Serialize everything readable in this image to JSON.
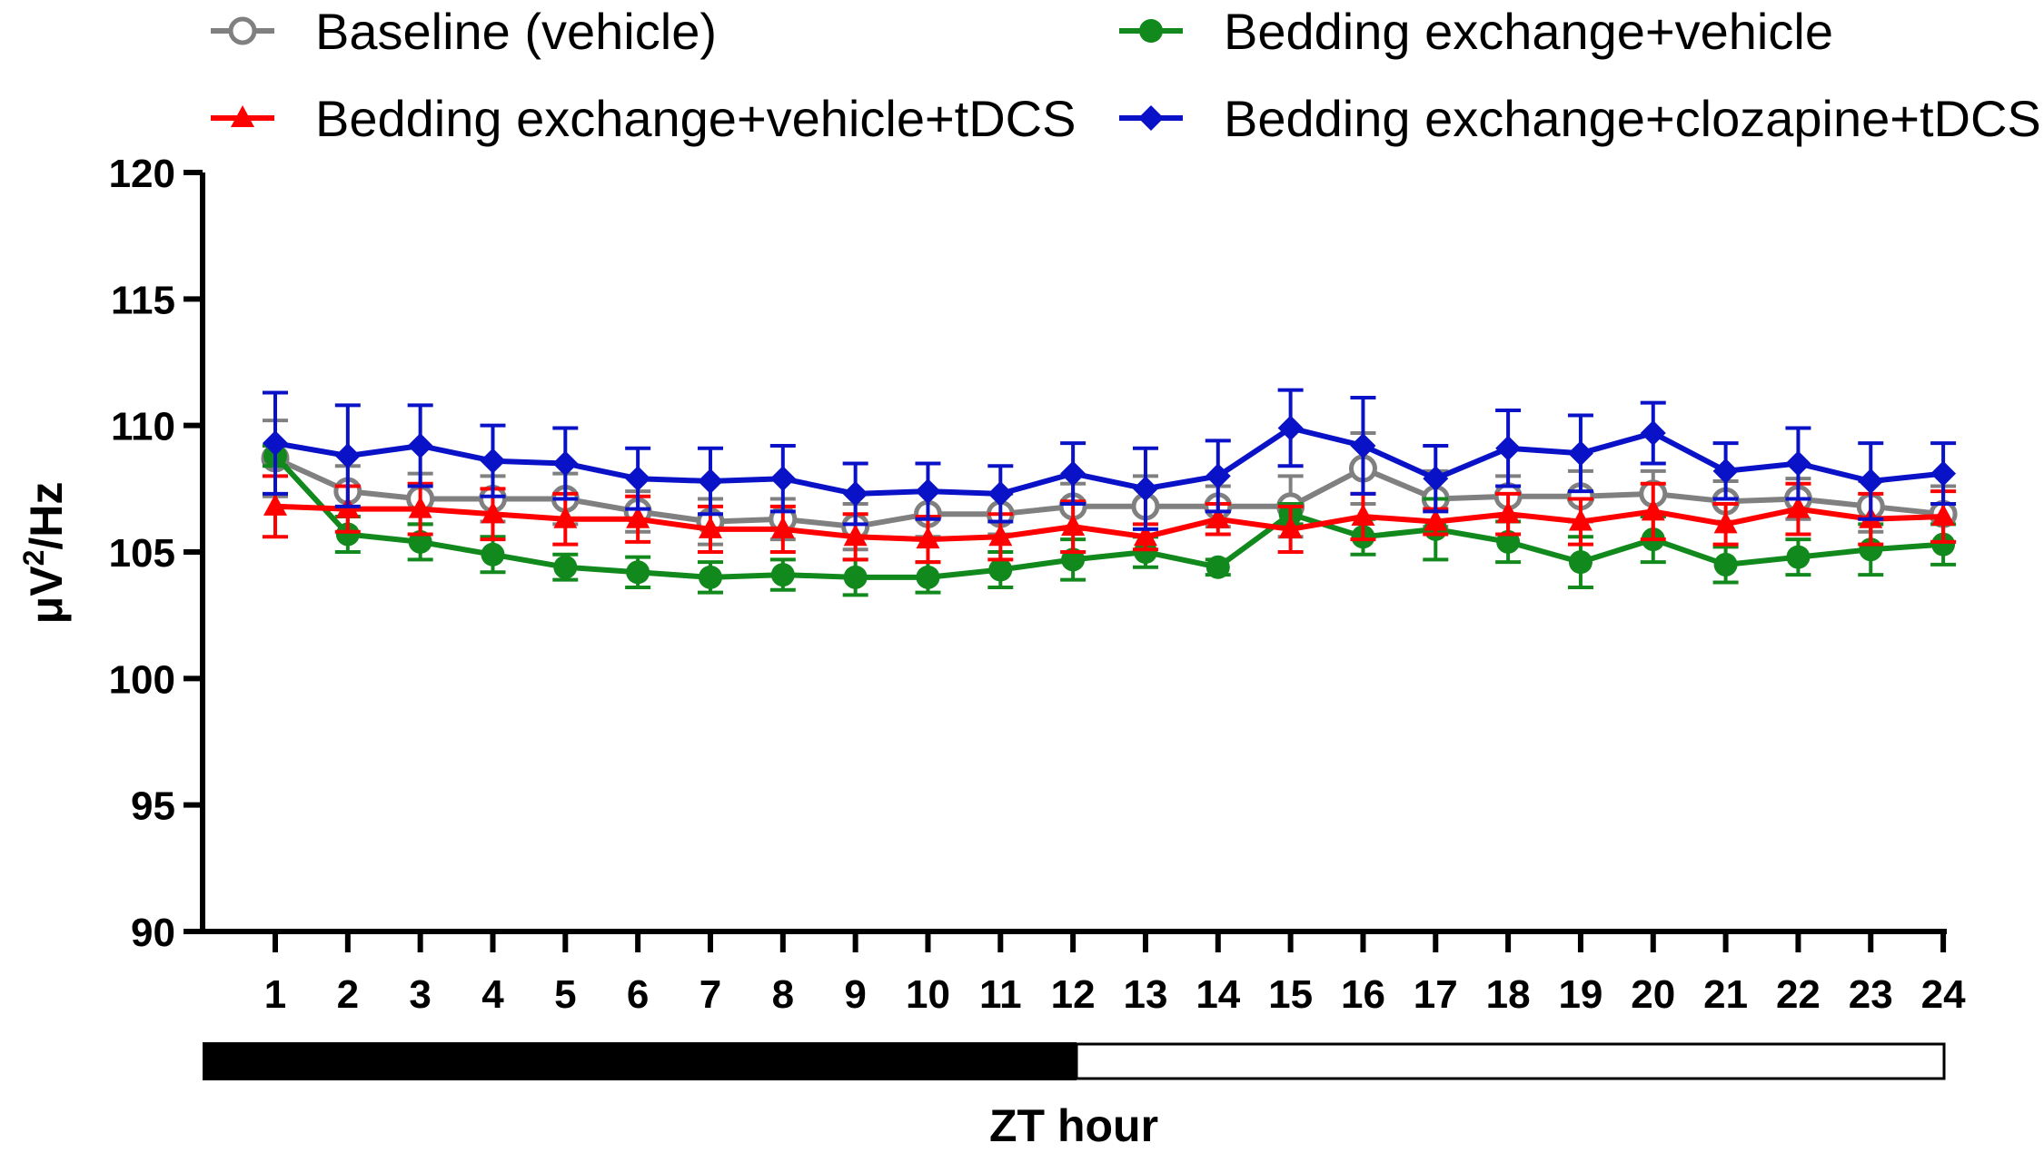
{
  "chart_data": {
    "type": "line",
    "title": "",
    "xlabel": "ZT hour",
    "ylabel_main": "μV",
    "ylabel_sup": "2",
    "ylabel_tail": "/Hz",
    "ylim": [
      90,
      120
    ],
    "yticks": [
      90,
      95,
      100,
      105,
      110,
      115,
      120
    ],
    "ytick_labels": [
      "90",
      "95",
      "100",
      "105",
      "110",
      "115",
      "120"
    ],
    "x": [
      1,
      2,
      3,
      4,
      5,
      6,
      7,
      8,
      9,
      10,
      11,
      12,
      13,
      14,
      15,
      16,
      17,
      18,
      19,
      20,
      21,
      22,
      23,
      24
    ],
    "x_labels": [
      "1",
      "2",
      "3",
      "4",
      "5",
      "6",
      "7",
      "8",
      "9",
      "10",
      "11",
      "12",
      "13",
      "14",
      "15",
      "16",
      "17",
      "18",
      "19",
      "20",
      "21",
      "22",
      "23",
      "24"
    ],
    "light_dark_bar": {
      "dark_hours": [
        1,
        12
      ],
      "light_hours": [
        13,
        24
      ]
    },
    "series": [
      {
        "name": "Baseline (vehicle)",
        "color": "#808080",
        "marker": "open-circle",
        "values": [
          108.7,
          107.4,
          107.1,
          107.1,
          107.1,
          106.6,
          106.2,
          106.3,
          106.0,
          106.5,
          106.5,
          106.8,
          106.8,
          106.8,
          106.8,
          108.3,
          107.1,
          107.2,
          107.2,
          107.3,
          107.0,
          107.1,
          106.8,
          106.5
        ],
        "errors": [
          1.5,
          1.0,
          1.0,
          0.9,
          1.0,
          0.8,
          0.9,
          0.8,
          0.9,
          0.9,
          0.8,
          0.9,
          1.2,
          0.8,
          1.2,
          1.4,
          1.1,
          0.8,
          1.0,
          0.9,
          0.8,
          0.8,
          1.0,
          1.1
        ]
      },
      {
        "name": "Bedding exchange+vehicle",
        "color": "#12891c",
        "marker": "filled-circle",
        "values": [
          108.8,
          105.7,
          105.4,
          104.9,
          104.4,
          104.2,
          104.0,
          104.1,
          104.0,
          104.0,
          104.3,
          104.7,
          105.0,
          104.4,
          106.5,
          105.6,
          105.9,
          105.4,
          104.6,
          105.5,
          104.5,
          104.8,
          105.1,
          105.3
        ],
        "errors": [
          0.4,
          0.7,
          0.7,
          0.7,
          0.5,
          0.6,
          0.6,
          0.6,
          0.7,
          0.6,
          0.7,
          0.8,
          0.6,
          0.3,
          0.4,
          0.7,
          1.2,
          0.8,
          1.0,
          0.9,
          0.7,
          0.7,
          1.0,
          0.8
        ]
      },
      {
        "name": "Bedding exchange+vehicle+tDCS",
        "color": "#ff0000",
        "marker": "filled-triangle",
        "values": [
          106.8,
          106.7,
          106.7,
          106.5,
          106.3,
          106.3,
          105.9,
          105.9,
          105.6,
          105.5,
          105.6,
          106.0,
          105.6,
          106.3,
          105.9,
          106.4,
          106.2,
          106.5,
          106.2,
          106.6,
          106.1,
          106.7,
          106.3,
          106.4
        ],
        "errors": [
          1.2,
          0.9,
          1.0,
          1.0,
          1.0,
          0.9,
          0.9,
          0.9,
          0.9,
          0.9,
          0.9,
          1.0,
          0.5,
          0.6,
          0.9,
          0.9,
          0.5,
          0.8,
          0.9,
          1.1,
          0.8,
          1.0,
          1.0,
          1.0
        ]
      },
      {
        "name": "Bedding exchange+clozapine+tDCS",
        "color": "#0a12c8",
        "marker": "filled-diamond",
        "values": [
          109.3,
          108.8,
          109.2,
          108.6,
          108.5,
          107.9,
          107.8,
          107.9,
          107.3,
          107.4,
          107.3,
          108.1,
          107.5,
          108.0,
          109.9,
          109.2,
          107.9,
          109.1,
          108.9,
          109.7,
          108.2,
          108.5,
          107.8,
          108.1
        ],
        "errors": [
          2.0,
          2.0,
          1.6,
          1.4,
          1.4,
          1.2,
          1.3,
          1.3,
          1.2,
          1.1,
          1.1,
          1.2,
          1.6,
          1.4,
          1.5,
          1.9,
          1.3,
          1.5,
          1.5,
          1.2,
          1.1,
          1.4,
          1.5,
          1.2
        ]
      }
    ]
  }
}
